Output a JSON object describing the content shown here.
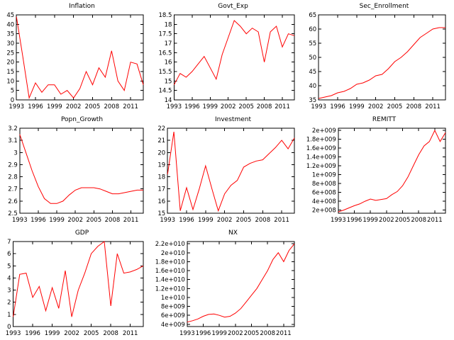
{
  "style": {
    "line_color": "#ff0000",
    "axis_color": "#000000",
    "background": "#ffffff",
    "text_color": "#000000"
  },
  "chart_data": [
    {
      "type": "line",
      "title": "Inflation",
      "x_start": 1993,
      "x_step": 1,
      "xlim": [
        1993,
        2013
      ],
      "xticks": [
        1993,
        1996,
        1999,
        2002,
        2005,
        2008,
        2011
      ],
      "ylim": [
        0,
        45
      ],
      "yticks": [
        0,
        5,
        10,
        15,
        20,
        25,
        30,
        35,
        40,
        45
      ],
      "ytick_labels": [
        "0",
        "5",
        "10",
        "15",
        "20",
        "25",
        "30",
        "35",
        "40",
        "45"
      ],
      "values": [
        44,
        23,
        1,
        9,
        4,
        8,
        8,
        3,
        5,
        1,
        6,
        15,
        8,
        17,
        12,
        26,
        10,
        5,
        20,
        19,
        8
      ]
    },
    {
      "type": "line",
      "title": "Govt_Exp",
      "x_start": 1993,
      "x_step": 1,
      "xlim": [
        1993,
        2013
      ],
      "xticks": [
        1993,
        1996,
        1999,
        2002,
        2005,
        2008,
        2011
      ],
      "ylim": [
        14,
        18.5
      ],
      "yticks": [
        14,
        14.5,
        15,
        15.5,
        16,
        16.5,
        17,
        17.5,
        18,
        18.5
      ],
      "ytick_labels": [
        "14",
        "14.5",
        "15",
        "15.5",
        "16",
        "16.5",
        "17",
        "17.5",
        "18",
        "18.5"
      ],
      "values": [
        14.8,
        15.4,
        15.2,
        15.5,
        15.9,
        16.3,
        15.7,
        15.1,
        16.4,
        17.3,
        18.2,
        17.9,
        17.5,
        17.8,
        17.6,
        16.0,
        17.6,
        17.9,
        16.8,
        17.5,
        17.4
      ]
    },
    {
      "type": "line",
      "title": "Sec_Enrollment",
      "x_start": 1993,
      "x_step": 1,
      "xlim": [
        1993,
        2013
      ],
      "xticks": [
        1993,
        1996,
        1999,
        2002,
        2005,
        2008,
        2011
      ],
      "ylim": [
        35,
        65
      ],
      "yticks": [
        35,
        40,
        45,
        50,
        55,
        60,
        65
      ],
      "ytick_labels": [
        "35",
        "40",
        "45",
        "50",
        "55",
        "60",
        "65"
      ],
      "values": [
        35.5,
        36.0,
        36.5,
        37.5,
        38.0,
        39.0,
        40.5,
        41.0,
        42.0,
        43.5,
        44.0,
        46.0,
        48.5,
        50.0,
        52.0,
        54.5,
        57.0,
        58.5,
        60.0,
        60.5,
        60.5
      ]
    },
    {
      "type": "line",
      "title": "Popn_Growth",
      "x_start": 1993,
      "x_step": 1,
      "xlim": [
        1993,
        2013
      ],
      "xticks": [
        1993,
        1996,
        1999,
        2002,
        2005,
        2008,
        2011
      ],
      "ylim": [
        2.5,
        3.2
      ],
      "yticks": [
        2.5,
        2.6,
        2.7,
        2.8,
        2.9,
        3,
        3.1,
        3.2
      ],
      "ytick_labels": [
        "2.5",
        "2.6",
        "2.7",
        "2.8",
        "2.9",
        "3",
        "3.1",
        "3.2"
      ],
      "values": [
        3.15,
        3.0,
        2.85,
        2.72,
        2.62,
        2.58,
        2.58,
        2.6,
        2.65,
        2.69,
        2.71,
        2.71,
        2.71,
        2.7,
        2.68,
        2.66,
        2.66,
        2.67,
        2.68,
        2.69,
        2.69
      ]
    },
    {
      "type": "line",
      "title": "Investment",
      "x_start": 1993,
      "x_step": 1,
      "xlim": [
        1993,
        2013
      ],
      "xticks": [
        1993,
        1996,
        1999,
        2002,
        2005,
        2008,
        2011
      ],
      "ylim": [
        15,
        22
      ],
      "yticks": [
        15,
        16,
        17,
        18,
        19,
        20,
        21,
        22
      ],
      "ytick_labels": [
        "15",
        "16",
        "17",
        "18",
        "19",
        "20",
        "21",
        "22"
      ],
      "values": [
        18.2,
        21.7,
        15.2,
        17.1,
        15.3,
        17.0,
        18.9,
        17.0,
        15.2,
        16.6,
        17.3,
        17.7,
        18.8,
        19.1,
        19.3,
        19.4,
        19.9,
        20.4,
        21.0,
        20.3,
        21.2
      ]
    },
    {
      "type": "line",
      "title": "REMITT",
      "x_start": 1993,
      "x_step": 1,
      "xlim": [
        1993,
        2013
      ],
      "xticks": [
        1993,
        1996,
        1999,
        2002,
        2005,
        2008,
        2011
      ],
      "ylim": [
        130000000.0,
        2050000000.0
      ],
      "yticks": [
        200000000.0,
        400000000.0,
        600000000.0,
        800000000.0,
        1000000000.0,
        1200000000.0,
        1400000000.0,
        1600000000.0,
        1800000000.0,
        2000000000.0
      ],
      "ytick_labels": [
        "2e+008",
        "4e+008",
        "6e+008",
        "8e+008",
        "1e+009",
        "1.2e+009",
        "1.4e+009",
        "1.6e+009",
        "1.8e+009",
        "2e+009"
      ],
      "values": [
        160000000.0,
        200000000.0,
        250000000.0,
        300000000.0,
        340000000.0,
        400000000.0,
        450000000.0,
        420000000.0,
        440000000.0,
        460000000.0,
        550000000.0,
        620000000.0,
        750000000.0,
        950000000.0,
        1200000000.0,
        1450000000.0,
        1650000000.0,
        1750000000.0,
        2000000000.0,
        1750000000.0,
        1950000000.0
      ]
    },
    {
      "type": "line",
      "title": "GDP",
      "x_start": 1993,
      "x_step": 1,
      "xlim": [
        1993,
        2013
      ],
      "xticks": [
        1993,
        1996,
        1999,
        2002,
        2005,
        2008,
        2011
      ],
      "ylim": [
        0,
        7
      ],
      "yticks": [
        0,
        1,
        2,
        3,
        4,
        5,
        6,
        7
      ],
      "ytick_labels": [
        "0",
        "1",
        "2",
        "3",
        "4",
        "5",
        "6",
        "7"
      ],
      "values": [
        0.8,
        4.3,
        4.4,
        2.4,
        3.3,
        1.3,
        3.2,
        1.5,
        4.6,
        0.8,
        3.0,
        4.4,
        6.0,
        6.6,
        7.0,
        1.7,
        6.0,
        4.4,
        4.5,
        4.7,
        5.0
      ]
    },
    {
      "type": "line",
      "title": "NX",
      "x_start": 1993,
      "x_step": 1,
      "xlim": [
        1993,
        2013
      ],
      "xticks": [
        1993,
        1996,
        1999,
        2002,
        2005,
        2008,
        2011
      ],
      "ylim": [
        3500000000.0,
        22500000000.0
      ],
      "yticks": [
        4000000000.0,
        6000000000.0,
        8000000000.0,
        10000000000.0,
        12000000000.0,
        14000000000.0,
        16000000000.0,
        18000000000.0,
        20000000000.0,
        22000000000.0
      ],
      "ytick_labels": [
        "4e+009",
        "6e+009",
        "8e+009",
        "1e+010",
        "1.2e+010",
        "1.4e+010",
        "1.6e+010",
        "1.8e+010",
        "2e+010",
        "2.2e+010"
      ],
      "values": [
        4500000000.0,
        4800000000.0,
        5200000000.0,
        5800000000.0,
        6200000000.0,
        6300000000.0,
        6000000000.0,
        5600000000.0,
        5800000000.0,
        6500000000.0,
        7500000000.0,
        9000000000.0,
        10500000000.0,
        12000000000.0,
        14000000000.0,
        16000000000.0,
        18500000000.0,
        20000000000.0,
        18000000000.0,
        20500000000.0,
        22000000000.0
      ]
    }
  ]
}
